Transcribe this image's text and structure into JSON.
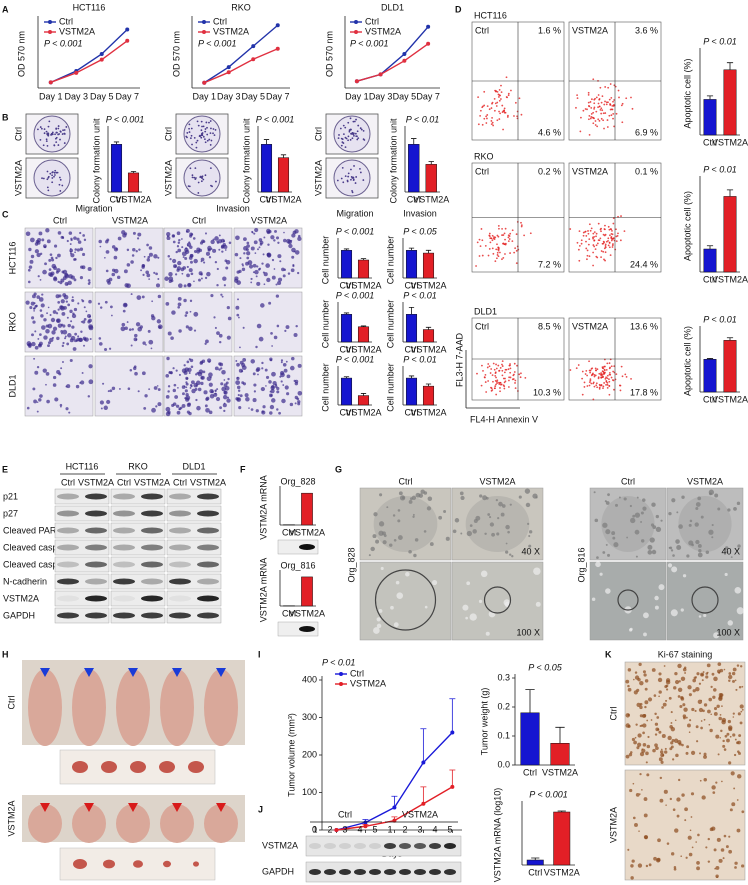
{
  "figure": {
    "panel_letters": [
      "A",
      "B",
      "C",
      "D",
      "E",
      "F",
      "G",
      "H",
      "I",
      "J",
      "K"
    ],
    "groups": [
      "Ctrl",
      "VSTM2A"
    ],
    "cell_lines": [
      "HCT116",
      "RKO",
      "DLD1"
    ],
    "assays": [
      "Migration",
      "Invasion"
    ],
    "flow": {
      "quadrants": [
        [
          [
            "1.6 %",
            "4.6 %"
          ],
          [
            "3.6 %",
            "6.9 %"
          ]
        ],
        [
          [
            "0.2 %",
            "7.2 %"
          ],
          [
            "0.1 %",
            "24.4 %"
          ]
        ],
        [
          [
            "8.5 %",
            "10.3 %"
          ],
          [
            "13.6 %",
            "17.8 %"
          ]
        ]
      ],
      "ylabel": "FL3-H 7-AAD",
      "xlabel": "FL4-H Annexin V"
    },
    "blot": {
      "proteins": [
        "p21",
        "p27",
        "Cleaved PARP",
        "Cleaved casp8",
        "Cleaved casp3",
        "N-cadherin",
        "VSTM2A",
        "GAPDH"
      ]
    },
    "organoids": {
      "names": [
        "Org_828",
        "Org_816"
      ],
      "magnifications": [
        "40 X",
        "100 X"
      ]
    },
    "xenograft_blot": {
      "lanes": [
        "1",
        "2",
        "3",
        "4",
        "5"
      ],
      "proteins": [
        "VSTM2A",
        "GAPDH"
      ]
    },
    "ihc": {
      "title": "Ki-67 staining"
    }
  },
  "chart_data": [
    {
      "type": "line",
      "title": "HCT116",
      "ylabel": "OD 570 nm",
      "categories": [
        "Day 1",
        "Day 3",
        "Day 5",
        "Day 7"
      ],
      "series": [
        {
          "name": "Ctrl",
          "color": "#2233aa",
          "values": [
            0.15,
            0.45,
            0.9,
            1.55
          ]
        },
        {
          "name": "VSTM2A",
          "color": "#e03040",
          "values": [
            0.15,
            0.4,
            0.75,
            1.25
          ]
        }
      ],
      "pvalue": "P < 0.001",
      "ylim": [
        0,
        1.8
      ]
    },
    {
      "type": "line",
      "title": "RKO",
      "ylabel": "OD 570 nm",
      "categories": [
        "Day 1",
        "Day 3",
        "Day 5",
        "Day 7"
      ],
      "series": [
        {
          "name": "Ctrl",
          "color": "#2233aa",
          "values": [
            0.1,
            0.4,
            0.8,
            1.2
          ]
        },
        {
          "name": "VSTM2A",
          "color": "#e03040",
          "values": [
            0.1,
            0.3,
            0.55,
            0.75
          ]
        }
      ],
      "pvalue": "P < 0.001",
      "ylim": [
        0,
        1.3
      ]
    },
    {
      "type": "line",
      "title": "DLD1",
      "ylabel": "OD 570 nm",
      "categories": [
        "Day 1",
        "Day 3",
        "Day 5",
        "Day 7"
      ],
      "series": [
        {
          "name": "Ctrl",
          "color": "#2233aa",
          "values": [
            0.1,
            0.2,
            0.5,
            0.9
          ]
        },
        {
          "name": "VSTM2A",
          "color": "#e03040",
          "values": [
            0.1,
            0.2,
            0.4,
            0.65
          ]
        }
      ],
      "pvalue": "P < 0.001",
      "ylim": [
        0,
        1.0
      ]
    },
    {
      "type": "bar",
      "ylabel": "Colony formation unit",
      "categories": [
        "Ctrl",
        "VSTM2A"
      ],
      "values": [
        100,
        40
      ],
      "errors": [
        5,
        3
      ],
      "colors": [
        "#1515d0",
        "#e21f26"
      ],
      "pvalue": "P < 0.001",
      "ylim": [
        0,
        130
      ]
    },
    {
      "type": "bar",
      "ylabel": "Colony formation unit",
      "categories": [
        "Ctrl",
        "VSTM2A"
      ],
      "values": [
        100,
        72
      ],
      "errors": [
        10,
        6
      ],
      "colors": [
        "#1515d0",
        "#e21f26"
      ],
      "pvalue": "P < 0.001",
      "ylim": [
        0,
        130
      ]
    },
    {
      "type": "bar",
      "ylabel": "Colony formation unit",
      "categories": [
        "Ctrl",
        "VSTM2A"
      ],
      "values": [
        100,
        58
      ],
      "errors": [
        12,
        6
      ],
      "colors": [
        "#1515d0",
        "#e21f26"
      ],
      "pvalue": "P < 0.01",
      "ylim": [
        0,
        130
      ]
    },
    {
      "type": "bar",
      "title": "Migration",
      "ylabel": "Cell number",
      "categories": [
        "Ctrl",
        "VSTM2A"
      ],
      "values": [
        100,
        65
      ],
      "errors": [
        5,
        5
      ],
      "colors": [
        "#1515d0",
        "#e21f26"
      ],
      "pvalue": "P < 0.001",
      "ylim": [
        0,
        130
      ]
    },
    {
      "type": "bar",
      "title": "Invasion",
      "ylabel": "Cell number",
      "categories": [
        "Ctrl",
        "VSTM2A"
      ],
      "values": [
        100,
        90
      ],
      "errors": [
        8,
        10
      ],
      "colors": [
        "#1515d0",
        "#e21f26"
      ],
      "pvalue": "P < 0.05",
      "ylim": [
        0,
        130
      ]
    },
    {
      "type": "bar",
      "ylabel": "Cell number",
      "categories": [
        "Ctrl",
        "VSTM2A"
      ],
      "values": [
        100,
        55
      ],
      "errors": [
        5,
        3
      ],
      "colors": [
        "#1515d0",
        "#e21f26"
      ],
      "pvalue": "P < 0.001",
      "ylim": [
        0,
        130
      ]
    },
    {
      "type": "bar",
      "ylabel": "Cell number",
      "categories": [
        "Ctrl",
        "VSTM2A"
      ],
      "values": [
        100,
        45
      ],
      "errors": [
        25,
        8
      ],
      "colors": [
        "#1515d0",
        "#e21f26"
      ],
      "pvalue": "P < 0.01",
      "ylim": [
        0,
        130
      ]
    },
    {
      "type": "bar",
      "ylabel": "Cell number",
      "categories": [
        "Ctrl",
        "VSTM2A"
      ],
      "values": [
        100,
        35
      ],
      "errors": [
        5,
        8
      ],
      "colors": [
        "#1515d0",
        "#e21f26"
      ],
      "pvalue": "P < 0.001",
      "ylim": [
        0,
        130
      ]
    },
    {
      "type": "bar",
      "ylabel": "Cell number",
      "categories": [
        "Ctrl",
        "VSTM2A"
      ],
      "values": [
        100,
        70
      ],
      "errors": [
        8,
        8
      ],
      "colors": [
        "#1515d0",
        "#e21f26"
      ],
      "pvalue": "P < 0.01",
      "ylim": [
        0,
        130
      ]
    },
    {
      "type": "bar",
      "ylabel": "Apoptotic cell (%)",
      "categories": [
        "Ctrl",
        "VSTM2A"
      ],
      "values": [
        6,
        11
      ],
      "errors": [
        0.6,
        1.2
      ],
      "colors": [
        "#1515d0",
        "#e21f26"
      ],
      "pvalue": "P < 0.01",
      "ylim": [
        0,
        14
      ]
    },
    {
      "type": "bar",
      "ylabel": "Apoptotic cell (%)",
      "categories": [
        "Ctrl",
        "VSTM2A"
      ],
      "values": [
        7,
        23
      ],
      "errors": [
        1,
        2
      ],
      "colors": [
        "#1515d0",
        "#e21f26"
      ],
      "pvalue": "P < 0.01",
      "ylim": [
        0,
        28
      ]
    },
    {
      "type": "bar",
      "ylabel": "Apoptotic cell (%)",
      "categories": [
        "Ctrl",
        "VSTM2A"
      ],
      "values": [
        19,
        30
      ],
      "errors": [
        0.5,
        1.5
      ],
      "colors": [
        "#1515d0",
        "#e21f26"
      ],
      "pvalue": "P < 0.01",
      "ylim": [
        0,
        36
      ]
    },
    {
      "type": "bar",
      "title": "Org_828",
      "ylabel": "VSTM2A mRNA",
      "categories": [
        "Ctrl",
        "VSTM2A"
      ],
      "values": [
        1,
        100
      ],
      "colors": [
        "#1515d0",
        "#e21f26"
      ],
      "ylim": [
        0,
        110
      ]
    },
    {
      "type": "bar",
      "title": "Org_816",
      "ylabel": "VSTM2A mRNA",
      "categories": [
        "Ctrl",
        "VSTM2A"
      ],
      "values": [
        1,
        100
      ],
      "colors": [
        "#1515d0",
        "#e21f26"
      ],
      "ylim": [
        0,
        110
      ]
    },
    {
      "type": "line",
      "ylabel": "Tumor volume (mm³)",
      "xlabel": "Days",
      "x": [
        3,
        6,
        9,
        12,
        15
      ],
      "xlim": [
        1.5,
        16
      ],
      "xticks": [
        3,
        6,
        9,
        12,
        15
      ],
      "ylim": [
        0,
        400
      ],
      "yticks": [
        0,
        100,
        200,
        300,
        400
      ],
      "series": [
        {
          "name": "Ctrl",
          "color": "#1a1ad8",
          "values": [
            0,
            20,
            60,
            180,
            260
          ],
          "errors": [
            0,
            8,
            30,
            90,
            90
          ]
        },
        {
          "name": "VSTM2A",
          "color": "#e21f26",
          "values": [
            0,
            10,
            25,
            70,
            115
          ],
          "errors": [
            0,
            5,
            10,
            45,
            45
          ]
        }
      ],
      "pvalue": "P < 0.01"
    },
    {
      "type": "bar",
      "ylabel": "Tumor weight (g)",
      "categories": [
        "Ctrl",
        "VSTM2A"
      ],
      "values": [
        0.18,
        0.075
      ],
      "errors": [
        0.08,
        0.055
      ],
      "colors": [
        "#1515d0",
        "#e21f26"
      ],
      "pvalue": "P < 0.05",
      "ylim": [
        0,
        0.3
      ],
      "yticks": [
        {
          "value": 0,
          "label": "0.0"
        },
        {
          "value": 0.1,
          "label": "0.1"
        },
        {
          "value": 0.2,
          "label": "0.2"
        },
        {
          "value": 0.3,
          "label": "0.3"
        }
      ]
    },
    {
      "type": "bar",
      "ylabel": "VSTM2A mRNA (log10)",
      "categories": [
        "Ctrl",
        "VSTM2A"
      ],
      "values": [
        0.5,
        5.3
      ],
      "errors": [
        0.2,
        0.1
      ],
      "colors": [
        "#1515d0",
        "#e21f26"
      ],
      "pvalue": "P < 0.001",
      "ylim": [
        0,
        6
      ]
    }
  ]
}
